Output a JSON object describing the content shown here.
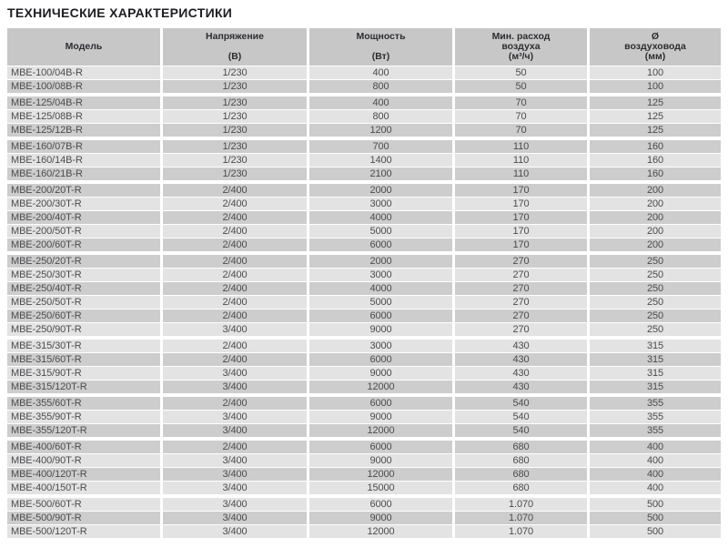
{
  "page": {
    "title": "ТЕХНИЧЕСКИЕ ХАРАКТЕРИСТИКИ"
  },
  "colors": {
    "header_bg": "#c7c7c7",
    "row_light": "#e3e3e3",
    "row_dark": "#cdcdcd",
    "header_text": "#2d2d32",
    "row_text": "#4c4c50",
    "title_text": "#1d1d22"
  },
  "table": {
    "columns": [
      {
        "label": "Модель",
        "unit": ""
      },
      {
        "label": "Напряжение",
        "unit": "(В)"
      },
      {
        "label": "Мощность",
        "unit": "(Вт)"
      },
      {
        "label": "Мин. расход\nвоздуха",
        "unit": "(м³/ч)"
      },
      {
        "label": "Ø\nвоздуховода",
        "unit": "(мм)"
      }
    ],
    "groups": [
      {
        "rows": [
          [
            "MBE-100/04B-R",
            "1/230",
            "400",
            "50",
            "100"
          ],
          [
            "MBE-100/08B-R",
            "1/230",
            "800",
            "50",
            "100"
          ]
        ]
      },
      {
        "rows": [
          [
            "MBE-125/04B-R",
            "1/230",
            "400",
            "70",
            "125"
          ],
          [
            "MBE-125/08B-R",
            "1/230",
            "800",
            "70",
            "125"
          ],
          [
            "MBE-125/12B-R",
            "1/230",
            "1200",
            "70",
            "125"
          ]
        ]
      },
      {
        "rows": [
          [
            "MBE-160/07B-R",
            "1/230",
            "700",
            "110",
            "160"
          ],
          [
            "MBE-160/14B-R",
            "1/230",
            "1400",
            "110",
            "160"
          ],
          [
            "MBE-160/21B-R",
            "1/230",
            "2100",
            "110",
            "160"
          ]
        ]
      },
      {
        "rows": [
          [
            "MBE-200/20T-R",
            "2/400",
            "2000",
            "170",
            "200"
          ],
          [
            "MBE-200/30T-R",
            "2/400",
            "3000",
            "170",
            "200"
          ],
          [
            "MBE-200/40T-R",
            "2/400",
            "4000",
            "170",
            "200"
          ],
          [
            "MBE-200/50T-R",
            "2/400",
            "5000",
            "170",
            "200"
          ],
          [
            "MBE-200/60T-R",
            "2/400",
            "6000",
            "170",
            "200"
          ]
        ]
      },
      {
        "rows": [
          [
            "MBE-250/20T-R",
            "2/400",
            "2000",
            "270",
            "250"
          ],
          [
            "MBE-250/30T-R",
            "2/400",
            "3000",
            "270",
            "250"
          ],
          [
            "MBE-250/40T-R",
            "2/400",
            "4000",
            "270",
            "250"
          ],
          [
            "MBE-250/50T-R",
            "2/400",
            "5000",
            "270",
            "250"
          ],
          [
            "MBE-250/60T-R",
            "2/400",
            "6000",
            "270",
            "250"
          ],
          [
            "MBE-250/90T-R",
            "3/400",
            "9000",
            "270",
            "250"
          ]
        ]
      },
      {
        "rows": [
          [
            "MBE-315/30T-R",
            "2/400",
            "3000",
            "430",
            "315"
          ],
          [
            "MBE-315/60T-R",
            "2/400",
            "6000",
            "430",
            "315"
          ],
          [
            "MBE-315/90T-R",
            "3/400",
            "9000",
            "430",
            "315"
          ],
          [
            "MBE-315/120T-R",
            "3/400",
            "12000",
            "430",
            "315"
          ]
        ]
      },
      {
        "rows": [
          [
            "MBE-355/60T-R",
            "2/400",
            "6000",
            "540",
            "355"
          ],
          [
            "MBE-355/90T-R",
            "3/400",
            "9000",
            "540",
            "355"
          ],
          [
            "MBE-355/120T-R",
            "3/400",
            "12000",
            "540",
            "355"
          ]
        ]
      },
      {
        "rows": [
          [
            "MBE-400/60T-R",
            "2/400",
            "6000",
            "680",
            "400"
          ],
          [
            "MBE-400/90T-R",
            "3/400",
            "9000",
            "680",
            "400"
          ],
          [
            "MBE-400/120T-R",
            "3/400",
            "12000",
            "680",
            "400"
          ],
          [
            "MBE-400/150T-R",
            "3/400",
            "15000",
            "680",
            "400"
          ]
        ]
      },
      {
        "rows": [
          [
            "MBE-500/60T-R",
            "3/400",
            "6000",
            "1.070",
            "500"
          ],
          [
            "MBE-500/90T-R",
            "3/400",
            "9000",
            "1.070",
            "500"
          ],
          [
            "MBE-500/120T-R",
            "3/400",
            "12000",
            "1.070",
            "500"
          ]
        ]
      }
    ]
  }
}
